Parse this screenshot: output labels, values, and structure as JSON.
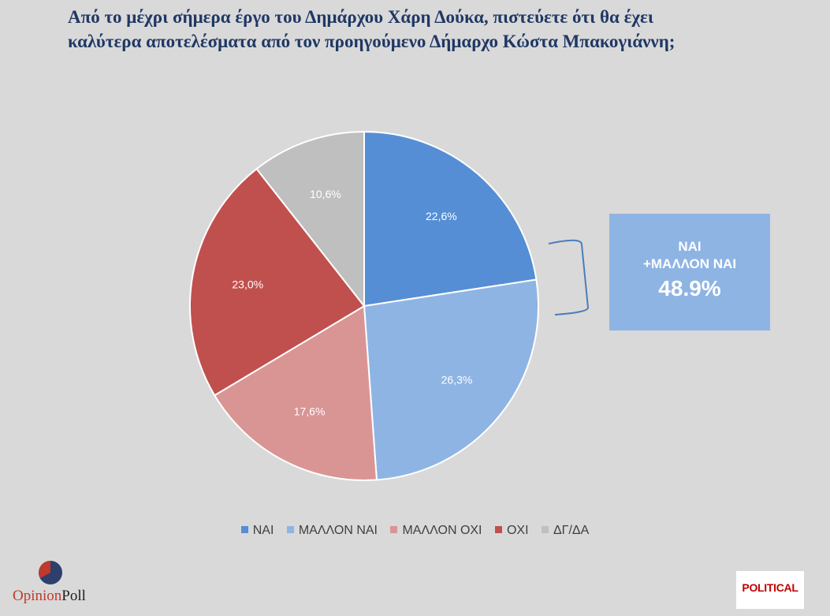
{
  "title": {
    "line1": "Από το μέχρι σήμερα έργο του Δημάρχου Χάρη Δούκα, πιστεύετε ότι θα έχει",
    "line2": "καλύτερα αποτελέσματα από τον προηγούμενο Δήμαρχο Κώστα Μπακογιάννη;"
  },
  "callout": {
    "line1": "ΝΑΙ",
    "line2": "+ΜΑΛΛΟΝ ΝΑΙ",
    "value": "48.9%",
    "color": "#8eb4e3"
  },
  "chart_data": {
    "type": "pie",
    "title": "Από το μέχρι σήμερα έργο του Δημάρχου Χάρη Δούκα, πιστεύετε ότι θα έχει καλύτερα αποτελέσματα από τον προηγούμενο Δήμαρχο Κώστα Μπακογιάννη;",
    "categories": [
      "ΝΑΙ",
      "ΜΑΛΛΟΝ ΝΑΙ",
      "ΜΑΛΛΟΝ ΟΧΙ",
      "ΟΧΙ",
      "ΔΓ/ΔΑ"
    ],
    "values": [
      22.6,
      26.3,
      17.6,
      23.0,
      10.6
    ],
    "labels": [
      "22,6%",
      "26,3%",
      "17,6%",
      "23,0%",
      "10,6%"
    ],
    "colors": [
      "#558ed5",
      "#8eb4e3",
      "#d99594",
      "#c0504d",
      "#bfbfbf"
    ],
    "legend_position": "bottom",
    "start": "12 o'clock",
    "direction": "clockwise"
  },
  "legend": [
    {
      "label": "ΝΑΙ",
      "color": "#558ed5"
    },
    {
      "label": "ΜΑΛΛΟΝ ΝΑΙ",
      "color": "#8eb4e3"
    },
    {
      "label": "ΜΑΛΛΟΝ ΟΧΙ",
      "color": "#d99594"
    },
    {
      "label": "ΟΧΙ",
      "color": "#c0504d"
    },
    {
      "label": "ΔΓ/ΔΑ",
      "color": "#bfbfbf"
    }
  ],
  "logos": {
    "opinion": "Opinion",
    "poll": "Poll",
    "political": "POLITICAL"
  }
}
